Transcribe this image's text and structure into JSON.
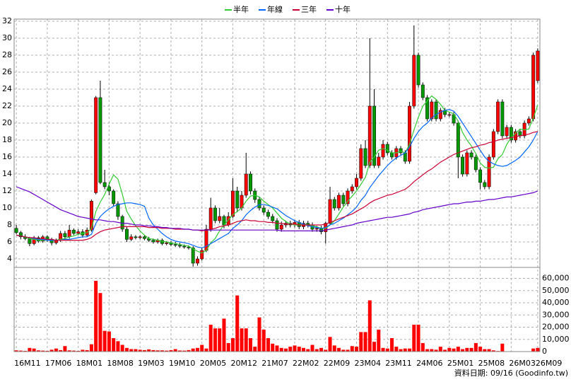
{
  "chart_data": [
    {
      "type": "candlestick",
      "legend": "top",
      "grid": true,
      "up_color": "#ff0000",
      "down_color": "#009900",
      "ylim": [
        3,
        32.25
      ],
      "yticks": [
        4,
        6,
        8,
        10,
        12,
        14,
        16,
        18,
        20,
        22,
        24,
        26,
        28,
        30,
        32
      ],
      "open": [
        7.6,
        7.1,
        6.6,
        6.4,
        5.8,
        6.5,
        6.1,
        6.6,
        6.3,
        5.9,
        6.2,
        7.0,
        6.6,
        7.4,
        7.0,
        7.2,
        6.8,
        7.4,
        11.8,
        23.0,
        13.0,
        12.5,
        12.0,
        10.5,
        9.0,
        7.5,
        6.3,
        6.6,
        6.5,
        6.6,
        6.4,
        6.2,
        6.0,
        6.2,
        5.8,
        5.9,
        5.7,
        5.6,
        5.5,
        5.4,
        5.3,
        3.5,
        4.0,
        5.0,
        7.5,
        10.0,
        8.5,
        9.0,
        8.0,
        9.0,
        12.0,
        10.0,
        11.5,
        14.0,
        12.0,
        11.0,
        10.0,
        9.5,
        9.0,
        8.5,
        7.5,
        8.0,
        8.2,
        8.0,
        8.3,
        7.8,
        8.2,
        8.0,
        7.5,
        7.6,
        7.2,
        8.2,
        11.0,
        10.0,
        11.5,
        10.5,
        12.0,
        12.5,
        13.5,
        17.0,
        15.0,
        22.0,
        15.0,
        16.0,
        17.5,
        16.5,
        16.0,
        17.0,
        16.5,
        15.5,
        22.0,
        28.0,
        24.5,
        23.0,
        20.5,
        22.5,
        20.5,
        21.5,
        21.0,
        21.0,
        20.0,
        16.0,
        14.0,
        16.5,
        16.0,
        14.5,
        13.0,
        12.5,
        16.0,
        19.0,
        22.5,
        18.5,
        19.5,
        18.0,
        19.0,
        18.5,
        20.0,
        20.5,
        25.0
      ],
      "high": [
        8.0,
        7.3,
        6.9,
        6.6,
        6.7,
        6.7,
        6.8,
        6.8,
        6.5,
        6.4,
        7.3,
        7.3,
        8.0,
        7.6,
        7.5,
        7.5,
        7.7,
        11.0,
        23.2,
        25.0,
        14.5,
        13.0,
        12.2,
        10.8,
        9.2,
        7.8,
        6.9,
        6.8,
        6.8,
        6.8,
        6.6,
        6.4,
        6.4,
        6.4,
        6.1,
        6.1,
        6.0,
        5.9,
        5.7,
        5.6,
        5.5,
        4.3,
        5.3,
        8.0,
        11.2,
        10.3,
        10.0,
        9.2,
        9.5,
        13.5,
        12.5,
        12.0,
        16.5,
        14.3,
        12.3,
        11.3,
        10.3,
        9.8,
        9.3,
        8.8,
        8.4,
        8.5,
        8.5,
        8.6,
        8.6,
        8.5,
        8.5,
        8.3,
        7.9,
        7.9,
        8.4,
        12.5,
        11.3,
        11.8,
        11.8,
        12.3,
        12.8,
        14.0,
        17.5,
        18.0,
        30.0,
        24.0,
        16.5,
        18.0,
        17.8,
        16.8,
        17.3,
        17.3,
        16.8,
        22.5,
        31.5,
        28.3,
        24.8,
        23.3,
        22.8,
        22.8,
        21.8,
        21.8,
        21.3,
        21.3,
        20.3,
        16.3,
        16.8,
        16.8,
        16.3,
        14.8,
        13.3,
        16.3,
        19.3,
        22.8,
        22.8,
        19.8,
        19.8,
        19.3,
        19.3,
        20.3,
        20.8,
        28.3,
        28.8
      ],
      "low": [
        6.9,
        6.3,
        6.2,
        5.5,
        5.6,
        5.9,
        5.9,
        6.0,
        5.6,
        5.7,
        6.0,
        6.4,
        6.4,
        6.8,
        6.8,
        6.5,
        6.6,
        7.2,
        11.6,
        12.8,
        12.2,
        11.5,
        10.2,
        8.6,
        7.2,
        6.0,
        6.1,
        6.3,
        6.3,
        6.2,
        6.0,
        5.8,
        5.8,
        5.6,
        5.6,
        5.5,
        5.4,
        5.3,
        5.2,
        5.1,
        3.1,
        3.2,
        3.8,
        4.8,
        7.2,
        8.2,
        8.2,
        7.6,
        7.8,
        8.8,
        9.5,
        9.7,
        11.2,
        11.6,
        10.6,
        9.7,
        9.2,
        8.7,
        8.2,
        7.2,
        7.2,
        7.7,
        7.7,
        7.7,
        7.5,
        7.5,
        7.7,
        7.2,
        7.2,
        6.9,
        5.8,
        8.0,
        9.7,
        9.7,
        10.2,
        10.2,
        11.7,
        12.2,
        13.2,
        14.7,
        14.7,
        14.7,
        14.7,
        15.7,
        16.2,
        15.7,
        15.7,
        16.2,
        15.2,
        15.2,
        21.7,
        24.2,
        22.7,
        20.2,
        20.2,
        20.2,
        20.2,
        20.7,
        20.7,
        19.7,
        13.5,
        13.7,
        13.7,
        15.7,
        14.2,
        12.2,
        12.2,
        12.2,
        15.7,
        18.7,
        18.2,
        18.2,
        17.7,
        17.7,
        18.2,
        18.2,
        19.7,
        20.2,
        24.7
      ],
      "close": [
        7.1,
        6.6,
        6.4,
        5.8,
        6.5,
        6.1,
        6.6,
        6.3,
        5.9,
        6.2,
        7.0,
        6.6,
        7.4,
        7.0,
        7.2,
        6.8,
        7.4,
        10.8,
        23.0,
        13.0,
        12.5,
        12.0,
        10.5,
        9.0,
        7.5,
        6.3,
        6.6,
        6.5,
        6.6,
        6.4,
        6.2,
        6.0,
        6.2,
        5.8,
        5.9,
        5.7,
        5.6,
        5.5,
        5.4,
        5.3,
        3.5,
        4.0,
        5.0,
        7.5,
        10.0,
        8.5,
        9.0,
        8.0,
        9.0,
        12.0,
        10.0,
        11.5,
        14.0,
        12.0,
        11.0,
        10.0,
        9.5,
        9.0,
        8.5,
        7.5,
        8.0,
        8.2,
        8.0,
        8.3,
        7.8,
        8.2,
        8.0,
        7.5,
        7.6,
        7.2,
        8.2,
        11.0,
        10.0,
        11.5,
        10.5,
        12.0,
        12.5,
        13.5,
        17.0,
        15.0,
        22.0,
        15.0,
        16.0,
        17.5,
        16.5,
        16.0,
        17.0,
        16.5,
        15.5,
        22.0,
        28.0,
        24.5,
        23.0,
        20.5,
        22.5,
        20.5,
        21.5,
        21.0,
        21.0,
        20.0,
        16.0,
        14.0,
        16.5,
        16.0,
        14.5,
        13.0,
        12.5,
        16.0,
        19.0,
        22.5,
        18.5,
        19.5,
        18.0,
        19.0,
        18.5,
        20.0,
        20.5,
        28.0,
        28.5
      ],
      "series": [
        {
          "name": "半年",
          "color": "#33cc33",
          "values": [
            6.8,
            6.7,
            6.6,
            6.4,
            6.3,
            6.2,
            6.2,
            6.2,
            6.2,
            6.2,
            6.3,
            6.4,
            6.6,
            6.7,
            6.9,
            7.0,
            7.1,
            7.6,
            9.6,
            10.7,
            11.6,
            12.8,
            13.9,
            13.4,
            11.6,
            9.6,
            8.7,
            7.9,
            7.3,
            6.8,
            6.4,
            6.3,
            6.2,
            6.1,
            6.0,
            5.9,
            5.8,
            5.7,
            5.6,
            5.5,
            5.2,
            4.9,
            4.7,
            5.0,
            5.9,
            6.4,
            7.3,
            8.0,
            8.6,
            9.2,
            9.6,
            10.0,
            10.8,
            11.4,
            11.5,
            11.3,
            10.8,
            10.4,
            10.0,
            9.4,
            8.8,
            8.4,
            8.1,
            8.0,
            8.0,
            8.1,
            8.0,
            7.9,
            7.8,
            7.6,
            7.6,
            8.0,
            8.5,
            9.3,
            10.1,
            10.8,
            11.4,
            12.0,
            12.8,
            13.6,
            15.4,
            16.0,
            16.8,
            17.0,
            16.8,
            16.5,
            16.5,
            16.7,
            16.5,
            17.5,
            19.2,
            20.7,
            22.0,
            22.6,
            23.2,
            22.8,
            22.2,
            21.5,
            21.3,
            21.1,
            20.2,
            18.9,
            18.0,
            17.3,
            16.4,
            15.3,
            14.8,
            14.7,
            14.8,
            15.8,
            16.3,
            17.5,
            18.3,
            18.8,
            19.3,
            19.2,
            19.3,
            20.6,
            22.1
          ]
        },
        {
          "name": "年線",
          "color": "#0066ff",
          "values": [
            6.8,
            6.7,
            6.6,
            6.5,
            6.4,
            6.3,
            6.3,
            6.2,
            6.2,
            6.2,
            6.2,
            6.3,
            6.3,
            6.4,
            6.5,
            6.6,
            6.6,
            6.9,
            8.2,
            9.0,
            9.5,
            9.9,
            10.2,
            10.4,
            10.5,
            10.6,
            10.6,
            10.5,
            10.4,
            10.2,
            8.8,
            8.0,
            7.5,
            7.0,
            6.6,
            6.3,
            6.1,
            6.0,
            5.9,
            5.8,
            5.6,
            5.4,
            5.3,
            5.5,
            5.8,
            6.1,
            6.4,
            6.7,
            7.0,
            7.6,
            8.0,
            8.5,
            9.2,
            9.7,
            10.1,
            10.4,
            10.4,
            10.3,
            10.1,
            9.9,
            9.5,
            9.1,
            8.8,
            8.5,
            8.3,
            8.1,
            7.9,
            7.8,
            7.7,
            7.6,
            7.7,
            8.0,
            8.2,
            8.5,
            8.8,
            9.2,
            9.6,
            10.1,
            10.9,
            11.5,
            12.4,
            13.1,
            13.8,
            14.4,
            15.0,
            15.5,
            15.9,
            16.2,
            16.5,
            17.2,
            18.2,
            19.0,
            19.6,
            20.0,
            20.6,
            21.0,
            21.3,
            21.5,
            21.6,
            21.4,
            20.8,
            20.0,
            19.2,
            18.4,
            17.6,
            16.8,
            16.0,
            15.5,
            15.2,
            15.0,
            14.9,
            15.0,
            15.3,
            15.6,
            16.0,
            16.6,
            17.2,
            18.0,
            19.0
          ]
        },
        {
          "name": "三年",
          "color": "#cc0033",
          "values": [
            6.8,
            6.7,
            6.6,
            6.5,
            6.5,
            6.4,
            6.4,
            6.3,
            6.3,
            6.2,
            6.2,
            6.2,
            6.2,
            6.2,
            6.2,
            6.2,
            6.3,
            6.5,
            6.9,
            7.2,
            7.4,
            7.5,
            7.6,
            7.7,
            7.8,
            7.8,
            7.8,
            7.8,
            7.8,
            7.8,
            7.7,
            7.7,
            7.7,
            7.6,
            7.6,
            7.6,
            7.5,
            7.5,
            7.5,
            7.5,
            7.4,
            7.4,
            7.3,
            7.4,
            7.5,
            7.6,
            7.8,
            7.9,
            8.0,
            8.2,
            8.4,
            8.5,
            8.6,
            8.5,
            8.5,
            8.4,
            8.4,
            8.3,
            8.3,
            8.2,
            8.2,
            8.1,
            8.1,
            8.1,
            8.0,
            8.0,
            8.0,
            8.0,
            8.0,
            8.0,
            8.1,
            8.3,
            8.5,
            8.7,
            8.9,
            9.1,
            9.3,
            9.6,
            9.9,
            10.2,
            10.6,
            10.9,
            11.1,
            11.3,
            11.5,
            11.6,
            11.8,
            12.0,
            12.2,
            12.6,
            13.1,
            13.5,
            13.9,
            14.3,
            14.6,
            15.0,
            15.4,
            15.7,
            16.0,
            16.3,
            16.5,
            16.7,
            16.9,
            17.1,
            17.2,
            17.4,
            17.5,
            17.7,
            17.8,
            18.0,
            18.1,
            18.2,
            18.3,
            18.4,
            18.5,
            18.6,
            18.7,
            18.9,
            19.0
          ]
        },
        {
          "name": "十年",
          "color": "#6600cc",
          "values": [
            12.5,
            12.3,
            12.1,
            11.9,
            11.6,
            11.3,
            11.0,
            10.7,
            10.4,
            10.1,
            9.8,
            9.6,
            9.4,
            9.2,
            9.0,
            8.9,
            8.8,
            8.7,
            8.6,
            8.6,
            8.5,
            8.4,
            8.4,
            8.3,
            8.2,
            8.2,
            8.1,
            8.0,
            8.0,
            7.9,
            7.9,
            7.8,
            7.8,
            7.7,
            7.7,
            7.6,
            7.6,
            7.6,
            7.5,
            7.5,
            7.4,
            7.4,
            7.4,
            7.4,
            7.4,
            7.4,
            7.4,
            7.4,
            7.4,
            7.4,
            7.4,
            7.4,
            7.4,
            7.4,
            7.4,
            7.4,
            7.4,
            7.4,
            7.4,
            7.4,
            7.3,
            7.3,
            7.3,
            7.3,
            7.3,
            7.3,
            7.3,
            7.3,
            7.3,
            7.3,
            7.4,
            7.5,
            7.6,
            7.7,
            7.8,
            7.9,
            8.0,
            8.2,
            8.3,
            8.4,
            8.5,
            8.6,
            8.7,
            8.8,
            8.9,
            8.9,
            9.0,
            9.1,
            9.2,
            9.3,
            9.5,
            9.6,
            9.8,
            9.9,
            10.0,
            10.1,
            10.2,
            10.3,
            10.4,
            10.5,
            10.5,
            10.6,
            10.7,
            10.7,
            10.8,
            10.8,
            10.9,
            11.0,
            11.0,
            11.1,
            11.2,
            11.3,
            11.3,
            11.4,
            11.5,
            11.6,
            11.7,
            11.8,
            12.0
          ]
        }
      ]
    },
    {
      "type": "bar",
      "grid": true,
      "color": "#ff0000",
      "categories": [
        "16M11",
        null,
        null,
        null,
        null,
        null,
        null,
        "17M06",
        null,
        null,
        null,
        null,
        null,
        null,
        "18M01",
        null,
        null,
        null,
        null,
        null,
        null,
        "18M08",
        null,
        null,
        null,
        null,
        null,
        null,
        "19M03",
        null,
        null,
        null,
        null,
        null,
        null,
        "19M10",
        null,
        null,
        null,
        null,
        null,
        null,
        "20M05",
        null,
        null,
        null,
        null,
        null,
        null,
        "20M12",
        null,
        null,
        null,
        null,
        null,
        null,
        "21M07",
        null,
        null,
        null,
        null,
        null,
        null,
        "22M02",
        null,
        null,
        null,
        null,
        null,
        null,
        "22M09",
        null,
        null,
        null,
        null,
        null,
        null,
        "23M04",
        null,
        null,
        null,
        null,
        null,
        null,
        "23M11",
        null,
        null,
        null,
        null,
        null,
        null,
        "24M06",
        null,
        null,
        null,
        null,
        null,
        null,
        "25M01",
        null,
        null,
        null,
        null,
        null,
        null,
        "25M08",
        null,
        null,
        null,
        null,
        null,
        null,
        "26M03",
        null,
        null,
        null,
        null,
        null,
        "26M09"
      ],
      "values": [
        1000,
        800,
        600,
        3000,
        2500,
        1000,
        800,
        600,
        1500,
        2500,
        1200,
        4500,
        1000,
        800,
        600,
        1500,
        1200,
        6000,
        58000,
        48000,
        17000,
        16500,
        11000,
        8500,
        5500,
        3000,
        2000,
        2000,
        1500,
        1200,
        1800,
        1200,
        1000,
        1000,
        800,
        1200,
        2000,
        900,
        800,
        1200,
        2500,
        3000,
        5500,
        2500,
        22000,
        19000,
        19000,
        27000,
        7000,
        11000,
        46000,
        19000,
        19000,
        11000,
        4000,
        28000,
        18000,
        11000,
        6500,
        5000,
        3000,
        2500,
        4000,
        5000,
        4000,
        3000,
        2000,
        5500,
        2000,
        3000,
        1500,
        12000,
        5000,
        3000,
        1500,
        1500,
        4500,
        4000,
        16000,
        16000,
        42000,
        8000,
        18000,
        3000,
        2500,
        11000,
        4000,
        2000,
        2500,
        2500,
        22000,
        22000,
        7000,
        2000,
        2000,
        1500,
        4000,
        1500,
        3000,
        2500,
        4000,
        2000,
        3000,
        3000,
        7000,
        4000,
        2000,
        2000,
        1000,
        500,
        6500,
        300,
        300,
        300,
        200,
        200,
        300,
        2500,
        3000
      ],
      "ylim": [
        0,
        69000
      ],
      "yticks": [
        0,
        {
          "value": 10000,
          "label": "10,000"
        },
        {
          "value": 20000,
          "label": "20,000"
        },
        {
          "value": 30000,
          "label": "30,000"
        },
        {
          "value": 40000,
          "label": "40,000"
        },
        {
          "value": 50000,
          "label": "50,000"
        },
        {
          "value": 60000,
          "label": "60,000"
        }
      ]
    }
  ],
  "footer": "資料日期: 09/16  (Goodinfo.tw)"
}
